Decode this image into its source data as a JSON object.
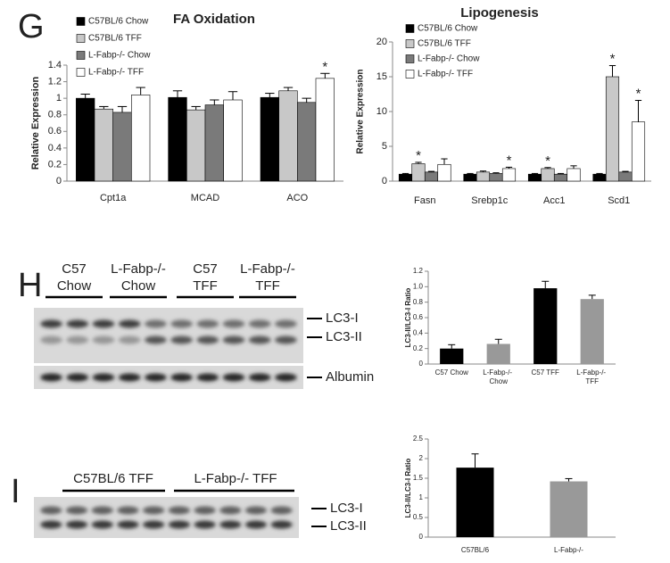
{
  "panels": [
    "G",
    "H",
    "I"
  ],
  "blot_h": {
    "groups": [
      [
        "C57",
        "Chow"
      ],
      [
        "L-Fabp-/-",
        "Chow"
      ],
      [
        "C57",
        "TFF"
      ],
      [
        "L-Fabp-/-",
        "TFF"
      ]
    ],
    "bands": [
      "LC3-I",
      "LC3-II",
      "Albumin"
    ]
  },
  "blot_i": {
    "groups": [
      "C57BL/6 TFF",
      "L-Fabp-/- TFF"
    ],
    "bands": [
      "LC3-I",
      "LC3-II"
    ]
  },
  "chart_data": [
    {
      "type": "bar",
      "title": "FA Oxidation",
      "y_label": "Relative Expression",
      "categories": [
        "Cpt1a",
        "MCAD",
        "ACO"
      ],
      "series": [
        {
          "name": "C57BL/6 Chow",
          "color": "#000000",
          "values": [
            1.0,
            1.01,
            1.01
          ],
          "errors": [
            0.05,
            0.08,
            0.05
          ],
          "annotations": [
            null,
            null,
            null
          ]
        },
        {
          "name": "C57BL/6 TFF",
          "color": "#c8c8c8",
          "values": [
            0.87,
            0.86,
            1.09
          ],
          "errors": [
            0.03,
            0.04,
            0.04
          ],
          "annotations": [
            null,
            null,
            null
          ]
        },
        {
          "name": "L-Fabp-/- Chow",
          "color": "#7a7a7a",
          "values": [
            0.83,
            0.92,
            0.95
          ],
          "errors": [
            0.07,
            0.06,
            0.05
          ],
          "annotations": [
            null,
            null,
            null
          ]
        },
        {
          "name": "L-Fabp-/- TFF",
          "color": "#ffffff",
          "values": [
            1.04,
            0.98,
            1.24
          ],
          "errors": [
            0.09,
            0.1,
            0.06
          ],
          "annotations": [
            null,
            null,
            "*"
          ]
        }
      ],
      "ylim": [
        0,
        1.4
      ],
      "yticks": [
        0,
        0.2,
        0.4,
        0.6,
        0.8,
        1,
        1.2,
        1.4
      ],
      "legend": "top-left"
    },
    {
      "type": "bar",
      "title": "Lipogenesis",
      "y_label": "Relative Expression",
      "categories": [
        "Fasn",
        "Srebp1c",
        "Acc1",
        "Scd1"
      ],
      "series": [
        {
          "name": "C57BL/6 Chow",
          "color": "#000000",
          "values": [
            1.0,
            1.0,
            1.0,
            1.0
          ],
          "errors": [
            0.1,
            0.1,
            0.1,
            0.1
          ],
          "annotations": [
            null,
            null,
            null,
            null
          ]
        },
        {
          "name": "C57BL/6 TFF",
          "color": "#c8c8c8",
          "values": [
            2.5,
            1.3,
            1.8,
            15.0
          ],
          "errors": [
            0.2,
            0.15,
            0.15,
            1.6
          ],
          "annotations": [
            "*",
            null,
            "*",
            "*"
          ]
        },
        {
          "name": "L-Fabp-/- Chow",
          "color": "#7a7a7a",
          "values": [
            1.3,
            1.1,
            1.0,
            1.3
          ],
          "errors": [
            0.1,
            0.1,
            0.1,
            0.1
          ],
          "annotations": [
            null,
            null,
            null,
            null
          ]
        },
        {
          "name": "L-Fabp-/- TFF",
          "color": "#ffffff",
          "values": [
            2.4,
            1.8,
            1.8,
            8.5
          ],
          "errors": [
            0.8,
            0.2,
            0.4,
            3.1
          ],
          "annotations": [
            null,
            "*",
            null,
            "*"
          ]
        }
      ],
      "ylim": [
        0,
        20
      ],
      "yticks": [
        0,
        5,
        10,
        15,
        20
      ],
      "legend": "top-left"
    },
    {
      "type": "bar",
      "y_label": "LC3-II/LC3-I Ratio",
      "categories": [
        "C57 Chow",
        "L-Fabp-/- Chow",
        "C57 TFF",
        "L-Fabp-/- TFF"
      ],
      "values": [
        0.2,
        0.26,
        0.98,
        0.84
      ],
      "errors": [
        0.05,
        0.06,
        0.09,
        0.05
      ],
      "colors": [
        "#000000",
        "#999999",
        "#000000",
        "#999999"
      ],
      "ylim": [
        0,
        1.2
      ],
      "yticks": [
        0,
        0.2,
        0.4,
        0.6,
        0.8,
        {
          "value": 1,
          "label": "1.0"
        },
        1.2
      ]
    },
    {
      "type": "bar",
      "y_label": "LC3-II/LC3-I Ratio",
      "categories": [
        "C57BL/6",
        "L-Fabp-/-"
      ],
      "values": [
        1.77,
        1.42
      ],
      "errors": [
        0.35,
        0.07
      ],
      "colors": [
        "#000000",
        "#999999"
      ],
      "ylim": [
        0,
        2.5
      ],
      "yticks": [
        0,
        0.5,
        1,
        1.5,
        2,
        2.5
      ]
    }
  ]
}
